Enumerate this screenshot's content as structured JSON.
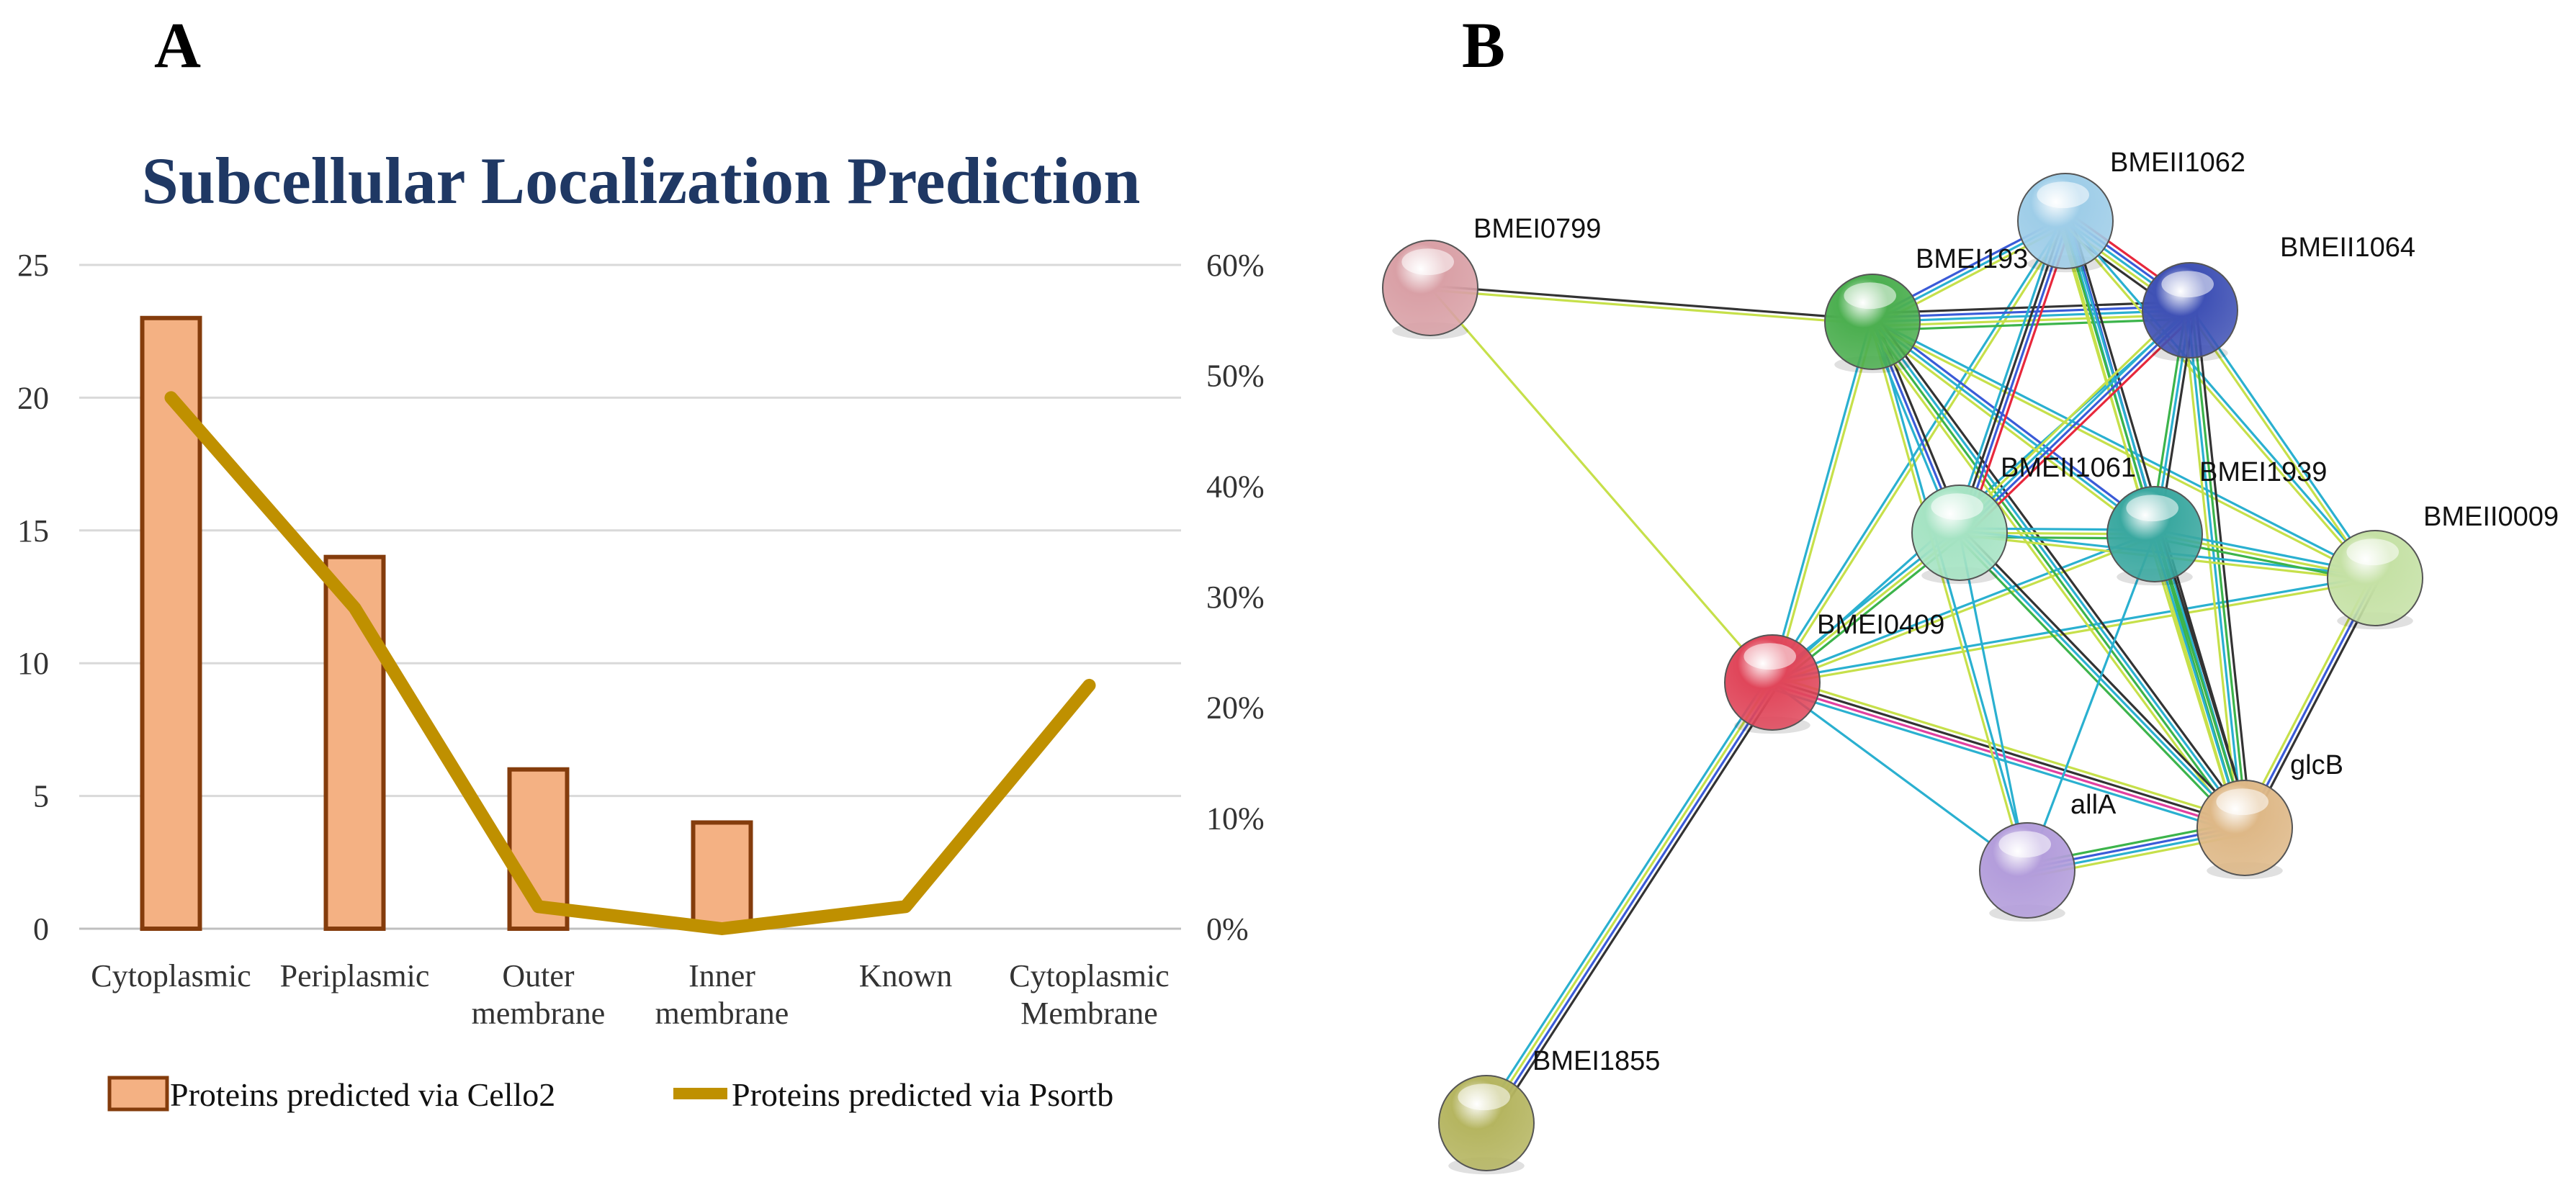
{
  "panels": {
    "a": "A",
    "b": "B"
  },
  "chart_data": {
    "type": "bar+line",
    "title": "Subcellular Localization Prediction",
    "categories": [
      [
        "Cytoplasmic"
      ],
      [
        "Periplasmic"
      ],
      [
        "Outer",
        "membrane"
      ],
      [
        "Inner",
        "membrane"
      ],
      [
        "Known"
      ],
      [
        "Cytoplasmic",
        "Membrane"
      ]
    ],
    "y_left": {
      "lim": [
        0,
        25
      ],
      "ticks": [
        0,
        5,
        10,
        15,
        20,
        25
      ]
    },
    "y_right": {
      "lim": [
        0,
        60
      ],
      "ticks": [
        "0%",
        "10%",
        "20%",
        "30%",
        "40%",
        "50%",
        "60%"
      ]
    },
    "series": [
      {
        "name": "Proteins predicted via Cello2",
        "kind": "bar",
        "axis": "left",
        "values": [
          23,
          14,
          6,
          4,
          null,
          null
        ],
        "color": "#f4b183",
        "edge": "#843c0c"
      },
      {
        "name": "Proteins predicted via Psortb",
        "kind": "line",
        "axis": "right",
        "values": [
          48,
          29,
          2,
          0,
          2,
          22
        ],
        "color": "#bf9000"
      }
    ],
    "grid": true,
    "legend": "bottom"
  },
  "network": {
    "nodes": [
      {
        "id": "BMEI0799",
        "label": "BMEI0799",
        "color": "#d9a0a6"
      },
      {
        "id": "BMEI1938",
        "label": "BMEI193",
        "color": "#4caf50"
      },
      {
        "id": "BMEII1062",
        "label": "BMEII1062",
        "color": "#9ecde8"
      },
      {
        "id": "BMEII1064",
        "label": "BMEII1064",
        "color": "#3f51b5"
      },
      {
        "id": "BMEII1061",
        "label": "BMEII1061",
        "color": "#a5e3c3"
      },
      {
        "id": "BMEI1939",
        "label": "BMEI1939",
        "color": "#3aa8a0"
      },
      {
        "id": "BMEII0009",
        "label": "BMEII0009",
        "color": "#c5e1a5"
      },
      {
        "id": "BMEI0409",
        "label": "BMEI0409",
        "color": "#e0465a"
      },
      {
        "id": "allA",
        "label": "allA",
        "color": "#b39ddb"
      },
      {
        "id": "glcB",
        "label": "glcB",
        "color": "#deb887"
      },
      {
        "id": "BMEI1855",
        "label": "BMEI1855",
        "color": "#b5b560"
      }
    ]
  }
}
